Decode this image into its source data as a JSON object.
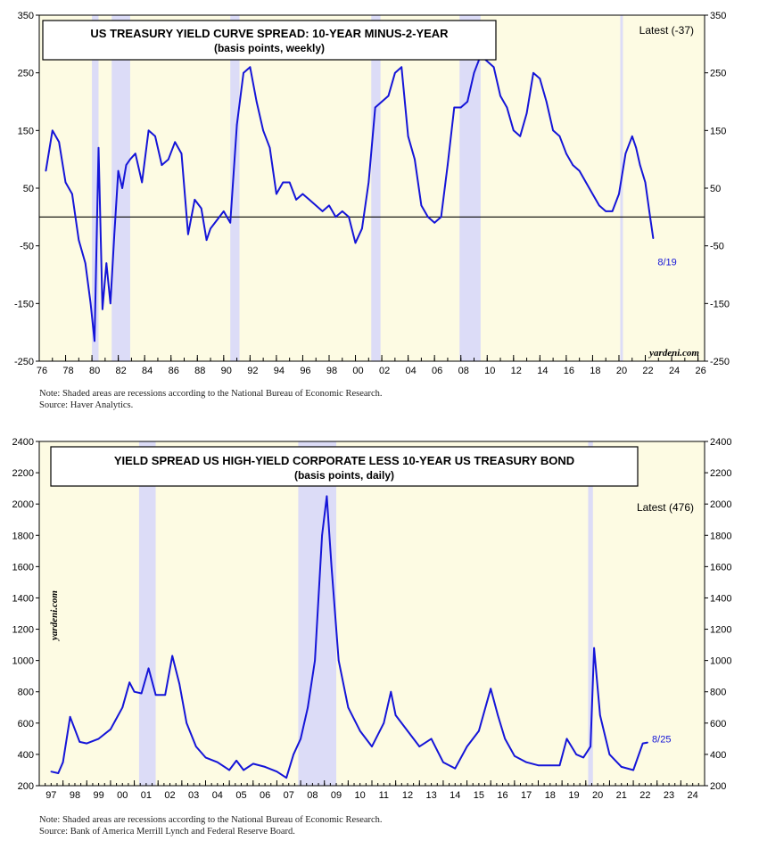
{
  "colors": {
    "plot_bg": "#fdfbe3",
    "recession": "#dcdcf7",
    "line": "#1515d8",
    "axis": "#000000",
    "label": "#1515d8"
  },
  "chart_data": [
    {
      "type": "line",
      "title": "US TREASURY YIELD CURVE SPREAD: 10-YEAR MINUS-2-YEAR",
      "subtitle": "(basis points, weekly)",
      "latest_text": "Latest (-37)",
      "end_label": "8/19",
      "watermark": "yardeni.com",
      "note": "Note: Shaded areas are recessions according to the National Bureau of Economic Research.",
      "source": "Source: Haver Analytics.",
      "xlim": [
        1976,
        2026.5
      ],
      "ylim": [
        -250,
        350
      ],
      "yticks": [
        350,
        250,
        150,
        50,
        -50,
        -150,
        -250
      ],
      "xtick_labels": [
        "76",
        "78",
        "80",
        "82",
        "84",
        "86",
        "88",
        "90",
        "92",
        "94",
        "96",
        "98",
        "00",
        "02",
        "04",
        "06",
        "08",
        "10",
        "12",
        "14",
        "16",
        "18",
        "20",
        "22",
        "24",
        "26"
      ],
      "recessions": [
        [
          1980.0,
          1980.5
        ],
        [
          1981.5,
          1982.9
        ],
        [
          1990.5,
          1991.2
        ],
        [
          2001.2,
          2001.9
        ],
        [
          2007.9,
          2009.5
        ],
        [
          2020.1,
          2020.3
        ]
      ],
      "zero_line": 0,
      "series": [
        {
          "name": "10yr-2yr spread",
          "x": [
            1976.5,
            1977.0,
            1977.5,
            1978.0,
            1978.5,
            1979.0,
            1979.5,
            1979.9,
            1980.2,
            1980.5,
            1980.8,
            1981.1,
            1981.4,
            1981.7,
            1982.0,
            1982.3,
            1982.6,
            1982.9,
            1983.3,
            1983.8,
            1984.3,
            1984.8,
            1985.3,
            1985.8,
            1986.3,
            1986.8,
            1987.3,
            1987.8,
            1988.3,
            1988.7,
            1989.0,
            1989.5,
            1990.0,
            1990.5,
            1991.0,
            1991.5,
            1992.0,
            1992.5,
            1993.0,
            1993.5,
            1994.0,
            1994.5,
            1995.0,
            1995.5,
            1996.0,
            1996.5,
            1997.0,
            1997.5,
            1998.0,
            1998.5,
            1999.0,
            1999.5,
            2000.0,
            2000.5,
            2001.0,
            2001.5,
            2002.0,
            2002.5,
            2003.0,
            2003.5,
            2004.0,
            2004.5,
            2005.0,
            2005.5,
            2006.0,
            2006.5,
            2007.0,
            2007.5,
            2008.0,
            2008.5,
            2009.0,
            2009.5,
            2010.0,
            2010.5,
            2011.0,
            2011.5,
            2012.0,
            2012.5,
            2013.0,
            2013.5,
            2014.0,
            2014.5,
            2015.0,
            2015.5,
            2016.0,
            2016.5,
            2017.0,
            2017.5,
            2018.0,
            2018.5,
            2019.0,
            2019.5,
            2020.0,
            2020.5,
            2021.0,
            2021.3,
            2021.6,
            2022.0,
            2022.3,
            2022.6
          ],
          "values": [
            80,
            150,
            130,
            60,
            40,
            -40,
            -80,
            -150,
            -215,
            120,
            -160,
            -80,
            -150,
            -30,
            80,
            50,
            90,
            100,
            110,
            60,
            150,
            140,
            90,
            100,
            130,
            110,
            -30,
            30,
            15,
            -40,
            -20,
            -5,
            10,
            -10,
            160,
            250,
            260,
            200,
            150,
            120,
            40,
            60,
            60,
            30,
            40,
            30,
            20,
            10,
            20,
            0,
            10,
            0,
            -45,
            -20,
            60,
            190,
            200,
            210,
            250,
            260,
            140,
            100,
            20,
            0,
            -10,
            0,
            90,
            190,
            190,
            200,
            250,
            280,
            270,
            260,
            210,
            190,
            150,
            140,
            180,
            250,
            240,
            200,
            150,
            140,
            110,
            90,
            80,
            60,
            40,
            20,
            10,
            10,
            40,
            110,
            140,
            120,
            90,
            60,
            10,
            -37
          ]
        }
      ]
    },
    {
      "type": "line",
      "title": "YIELD SPREAD US HIGH-YIELD CORPORATE LESS 10-YEAR US TREASURY BOND",
      "subtitle": "(basis points, daily)",
      "latest_text": "Latest (476)",
      "end_label": "8/25",
      "watermark": "yardeni.com",
      "note": "Note: Shaded areas are recessions according to the National Bureau of Economic Research.",
      "source": "Source: Bank of America Merrill Lynch and Federal Reserve Board.",
      "xlim": [
        1997,
        2025
      ],
      "ylim": [
        200,
        2400
      ],
      "yticks": [
        2400,
        2200,
        2000,
        1800,
        1600,
        1400,
        1200,
        1000,
        800,
        600,
        400,
        200
      ],
      "xtick_labels": [
        "97",
        "98",
        "99",
        "00",
        "01",
        "02",
        "03",
        "04",
        "05",
        "06",
        "07",
        "08",
        "09",
        "10",
        "11",
        "12",
        "13",
        "14",
        "15",
        "16",
        "17",
        "18",
        "19",
        "20",
        "21",
        "22",
        "23",
        "24"
      ],
      "recessions": [
        [
          2001.2,
          2001.9
        ],
        [
          2007.9,
          2009.5
        ],
        [
          2020.1,
          2020.3
        ]
      ],
      "series": [
        {
          "name": "HY spread",
          "x": [
            1997.5,
            1997.8,
            1998.0,
            1998.3,
            1998.7,
            1999.0,
            1999.5,
            2000.0,
            2000.5,
            2000.8,
            2001.0,
            2001.3,
            2001.6,
            2001.9,
            2002.3,
            2002.6,
            2002.9,
            2003.2,
            2003.6,
            2004.0,
            2004.5,
            2005.0,
            2005.3,
            2005.6,
            2006.0,
            2006.5,
            2007.0,
            2007.4,
            2007.7,
            2008.0,
            2008.3,
            2008.6,
            2008.9,
            2009.1,
            2009.3,
            2009.6,
            2010.0,
            2010.5,
            2011.0,
            2011.5,
            2011.8,
            2012.0,
            2012.5,
            2013.0,
            2013.5,
            2014.0,
            2014.5,
            2015.0,
            2015.5,
            2016.0,
            2016.3,
            2016.6,
            2017.0,
            2017.5,
            2018.0,
            2018.5,
            2018.9,
            2019.2,
            2019.6,
            2019.9,
            2020.2,
            2020.35,
            2020.6,
            2021.0,
            2021.5,
            2022.0,
            2022.4,
            2022.6
          ],
          "values": [
            290,
            280,
            350,
            640,
            480,
            470,
            500,
            560,
            700,
            860,
            800,
            790,
            950,
            780,
            780,
            1030,
            850,
            600,
            450,
            380,
            350,
            300,
            360,
            300,
            340,
            320,
            290,
            250,
            400,
            500,
            700,
            1000,
            1800,
            2050,
            1600,
            1000,
            700,
            550,
            450,
            600,
            800,
            650,
            550,
            450,
            500,
            350,
            310,
            450,
            550,
            820,
            650,
            500,
            390,
            350,
            330,
            330,
            330,
            500,
            400,
            380,
            450,
            1080,
            650,
            400,
            320,
            300,
            470,
            476
          ]
        }
      ]
    }
  ]
}
